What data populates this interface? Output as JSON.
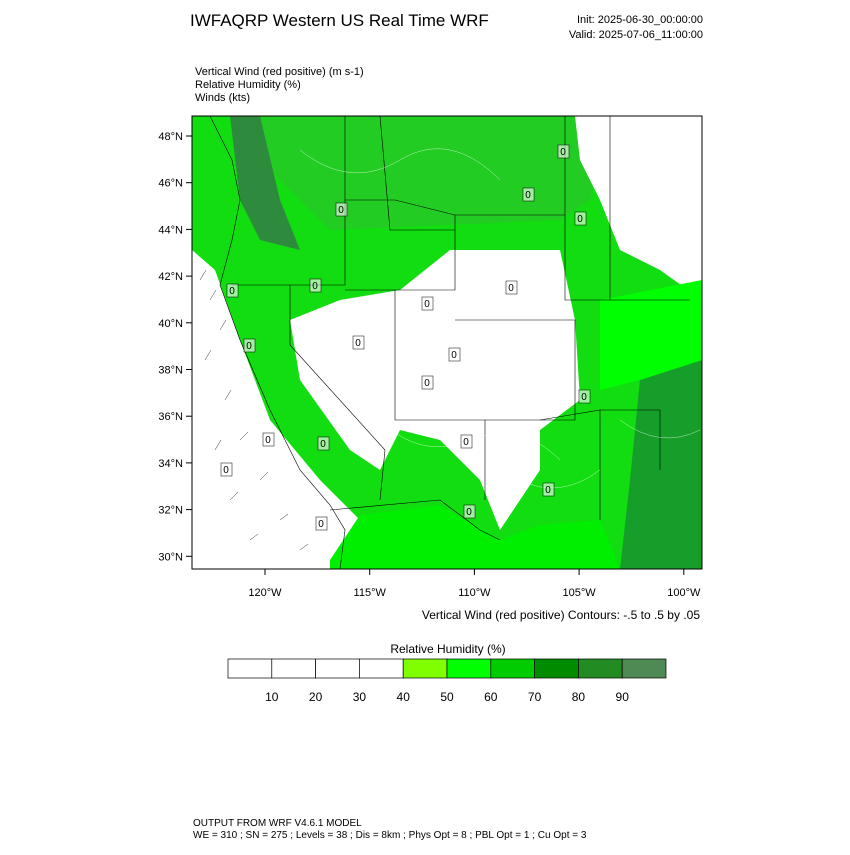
{
  "header": {
    "title": "IWFAQRP Western US Real Time WRF",
    "init": "Init: 2025-06-30_00:00:00",
    "valid": "Valid: 2025-07-06_11:00:00"
  },
  "fields": [
    "Vertical Wind (red positive)   (m s-1)",
    "Relative Humidity   (%)",
    "Winds   (kts)"
  ],
  "map": {
    "lat_labels": [
      "48°N",
      "46°N",
      "44°N",
      "42°N",
      "40°N",
      "38°N",
      "36°N",
      "34°N",
      "32°N",
      "30°N"
    ],
    "lon_labels": [
      "120°W",
      "115°W",
      "110°W",
      "105°W",
      "100°W"
    ],
    "contour_labels": [
      "0",
      "0",
      "0",
      "0",
      "0",
      "0",
      "0",
      "0",
      "0",
      "0",
      "0",
      "0",
      "0",
      "0",
      "0",
      "0",
      "0",
      "0",
      "0",
      "0"
    ],
    "contour_note": "Vertical Wind (red positive) Contours: -.5 to .5 by .05"
  },
  "colorbar": {
    "title": "Relative Humidity  (%)",
    "ticks": [
      10,
      20,
      30,
      40,
      50,
      60,
      70,
      80,
      90
    ],
    "colors": [
      "#ffffff",
      "#ffffff",
      "#ffffff",
      "#ffffff",
      "#80ff00",
      "#00ff00",
      "#00cd00",
      "#008b00",
      "#228b22",
      "#4f8a54"
    ]
  },
  "footer": [
    "OUTPUT FROM WRF V4.6.1 MODEL",
    "WE = 310 ; SN = 275 ; Levels = 38 ; Dis = 8km ; Phys Opt = 8 ; PBL Opt = 1 ; Cu Opt = 3"
  ]
}
